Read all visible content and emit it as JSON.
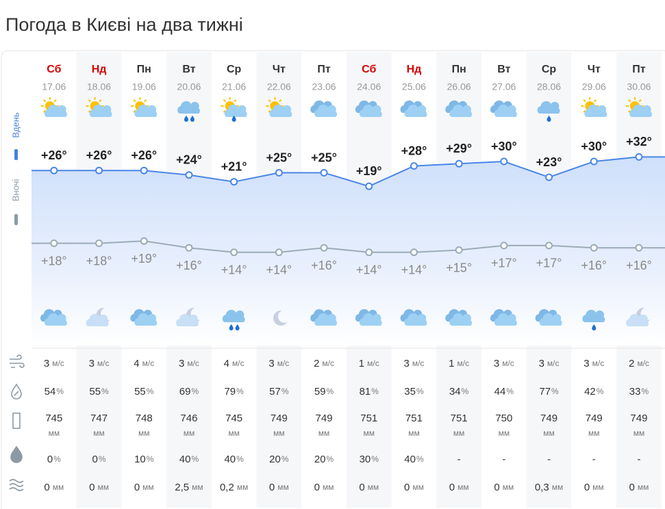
{
  "title": "Погода в Києві на два тижні",
  "legend": {
    "day": "Вдень",
    "night": "Вночі"
  },
  "units": {
    "wind": "м/с",
    "humidity": "%",
    "pressure": "мм",
    "precip_prob": "%",
    "precip": "мм"
  },
  "days": [
    {
      "weekday": "Сб",
      "date": "17.06",
      "weekend": true,
      "day_temp": 26,
      "day_temp_label": "+26°",
      "night_temp": 18,
      "night_temp_label": "+18°",
      "wind": 3,
      "humidity": 54,
      "pressure": 745,
      "precip_prob": 0,
      "precip": "0"
    },
    {
      "weekday": "Нд",
      "date": "18.06",
      "weekend": true,
      "day_temp": 26,
      "day_temp_label": "+26°",
      "night_temp": 18,
      "night_temp_label": "+18°",
      "wind": 3,
      "humidity": 55,
      "pressure": 747,
      "precip_prob": 0,
      "precip": "0"
    },
    {
      "weekday": "Пн",
      "date": "19.06",
      "weekend": false,
      "day_temp": 26,
      "day_temp_label": "+26°",
      "night_temp": 19,
      "night_temp_label": "+19°",
      "wind": 4,
      "humidity": 55,
      "pressure": 748,
      "precip_prob": 10,
      "precip": "0"
    },
    {
      "weekday": "Вт",
      "date": "20.06",
      "weekend": false,
      "day_temp": 24,
      "day_temp_label": "+24°",
      "night_temp": 16,
      "night_temp_label": "+16°",
      "wind": 3,
      "humidity": 69,
      "pressure": 746,
      "precip_prob": 40,
      "precip": "2,5"
    },
    {
      "weekday": "Ср",
      "date": "21.06",
      "weekend": false,
      "day_temp": 21,
      "day_temp_label": "+21°",
      "night_temp": 14,
      "night_temp_label": "+14°",
      "wind": 4,
      "humidity": 79,
      "pressure": 745,
      "precip_prob": 40,
      "precip": "0,2"
    },
    {
      "weekday": "Чт",
      "date": "22.06",
      "weekend": false,
      "day_temp": 25,
      "day_temp_label": "+25°",
      "night_temp": 14,
      "night_temp_label": "+14°",
      "wind": 3,
      "humidity": 57,
      "pressure": 749,
      "precip_prob": 20,
      "precip": "0"
    },
    {
      "weekday": "Пт",
      "date": "23.06",
      "weekend": false,
      "day_temp": 25,
      "day_temp_label": "+25°",
      "night_temp": 16,
      "night_temp_label": "+16°",
      "wind": 2,
      "humidity": 59,
      "pressure": 749,
      "precip_prob": 20,
      "precip": "0"
    },
    {
      "weekday": "Сб",
      "date": "24.06",
      "weekend": true,
      "day_temp": 19,
      "day_temp_label": "+19°",
      "night_temp": 14,
      "night_temp_label": "+14°",
      "wind": 1,
      "humidity": 81,
      "pressure": 751,
      "precip_prob": 30,
      "precip": "0"
    },
    {
      "weekday": "Нд",
      "date": "25.06",
      "weekend": true,
      "day_temp": 28,
      "day_temp_label": "+28°",
      "night_temp": 14,
      "night_temp_label": "+14°",
      "wind": 3,
      "humidity": 35,
      "pressure": 751,
      "precip_prob": 40,
      "precip": "0"
    },
    {
      "weekday": "Пн",
      "date": "26.06",
      "weekend": false,
      "day_temp": 29,
      "day_temp_label": "+29°",
      "night_temp": 15,
      "night_temp_label": "+15°",
      "wind": 1,
      "humidity": 34,
      "pressure": 751,
      "precip_prob": "-",
      "precip": "0"
    },
    {
      "weekday": "Вт",
      "date": "27.06",
      "weekend": false,
      "day_temp": 30,
      "day_temp_label": "+30°",
      "night_temp": 17,
      "night_temp_label": "+17°",
      "wind": 3,
      "humidity": 44,
      "pressure": 750,
      "precip_prob": "-",
      "precip": "0"
    },
    {
      "weekday": "Ср",
      "date": "28.06",
      "weekend": false,
      "day_temp": 23,
      "day_temp_label": "+23°",
      "night_temp": 17,
      "night_temp_label": "+17°",
      "wind": 3,
      "humidity": 77,
      "pressure": 749,
      "precip_prob": "-",
      "precip": "0,3"
    },
    {
      "weekday": "Чт",
      "date": "29.06",
      "weekend": false,
      "day_temp": 30,
      "day_temp_label": "+30°",
      "night_temp": 16,
      "night_temp_label": "+16°",
      "wind": 3,
      "humidity": 42,
      "pressure": 749,
      "precip_prob": "-",
      "precip": "0"
    },
    {
      "weekday": "Пт",
      "date": "30.06",
      "weekend": false,
      "day_temp": 32,
      "day_temp_label": "+32°",
      "night_temp": 16,
      "night_temp_label": "+16°",
      "wind": 2,
      "humidity": 33,
      "pressure": 749,
      "precip_prob": "-",
      "precip": "0"
    }
  ]
}
